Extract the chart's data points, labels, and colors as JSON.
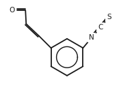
{
  "bg_color": "#ffffff",
  "line_color": "#1a1a1a",
  "lw": 1.3,
  "label_S": "S",
  "label_N": "N",
  "label_C": "C",
  "label_O": "O",
  "fontsize": 7.5
}
